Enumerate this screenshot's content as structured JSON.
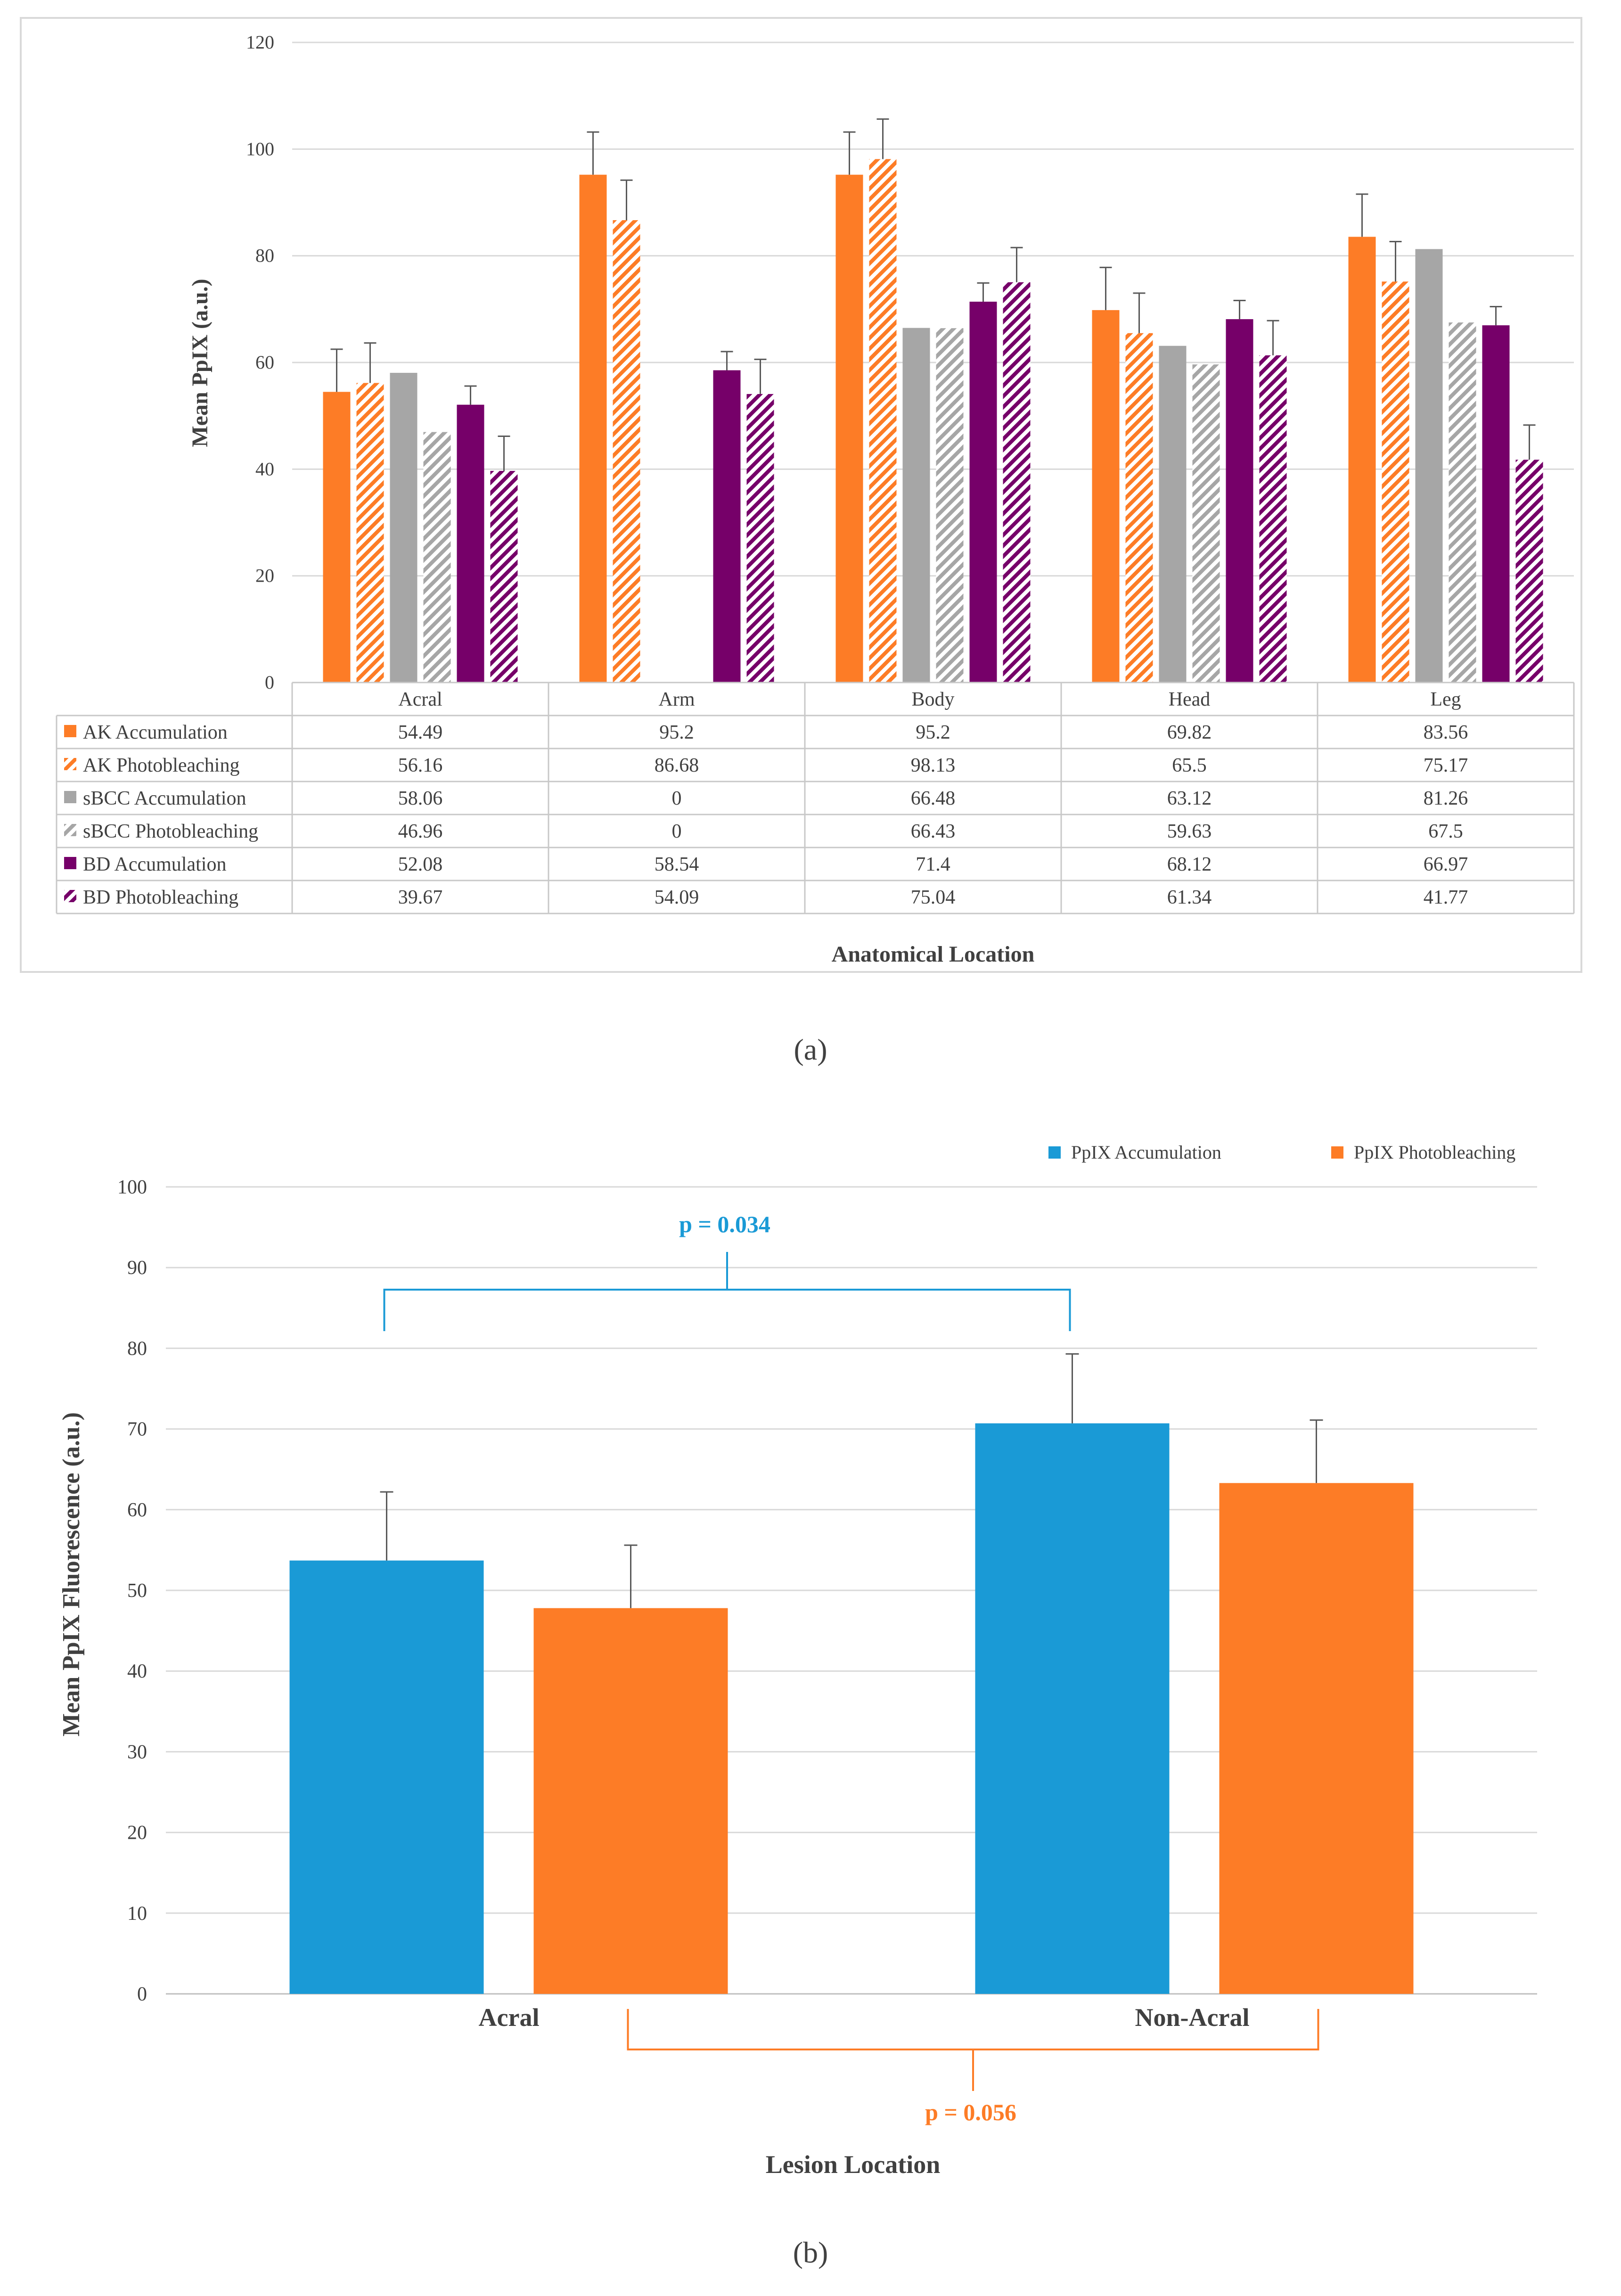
{
  "colors": {
    "ak": "#fd7c26",
    "sbcc": "#a6a6a6",
    "bd": "#760069",
    "accum_b": "#1a9ad6",
    "photo_b": "#fd7c26",
    "grid": "#d9d9d9",
    "error": "#595959"
  },
  "chart_data": [
    {
      "type": "bar",
      "panel_label": "(a)",
      "ylabel": "Mean PpIX (a.u.)",
      "xlabel": "Anatomical Location",
      "ylim": [
        0,
        120
      ],
      "yticks": [
        0,
        20,
        40,
        60,
        80,
        100,
        120
      ],
      "grid": true,
      "legend": "table",
      "categories": [
        "Acral",
        "Arm",
        "Body",
        "Head",
        "Leg"
      ],
      "series": [
        {
          "name": "AK Accumulation",
          "color_key": "ak",
          "hatched": false,
          "values": [
            54.49,
            95.2,
            95.2,
            69.82,
            83.56
          ],
          "errors": [
            8,
            8,
            8,
            8,
            8
          ]
        },
        {
          "name": "AK Photobleaching",
          "color_key": "ak",
          "hatched": true,
          "values": [
            56.16,
            86.68,
            98.13,
            65.5,
            75.17
          ],
          "errors": [
            7.5,
            7.5,
            7.5,
            7.5,
            7.5
          ]
        },
        {
          "name": "sBCC Accumulation",
          "color_key": "sbcc",
          "hatched": false,
          "values": [
            58.06,
            0,
            66.48,
            63.12,
            81.26
          ],
          "errors": [
            0,
            0,
            0,
            0,
            0
          ]
        },
        {
          "name": "sBCC Photobleaching",
          "color_key": "sbcc",
          "hatched": true,
          "values": [
            46.96,
            0,
            66.43,
            59.63,
            67.5
          ],
          "errors": [
            0,
            0,
            0,
            0,
            0
          ]
        },
        {
          "name": "BD Accumulation",
          "color_key": "bd",
          "hatched": false,
          "values": [
            52.08,
            58.54,
            71.4,
            68.12,
            66.97
          ],
          "errors": [
            3.5,
            3.5,
            3.5,
            3.5,
            3.5
          ]
        },
        {
          "name": "BD Photobleaching",
          "color_key": "bd",
          "hatched": true,
          "values": [
            39.67,
            54.09,
            75.04,
            61.34,
            41.77
          ],
          "errors": [
            6.5,
            6.5,
            6.5,
            6.5,
            6.5
          ]
        }
      ],
      "table_values": [
        [
          "54.49",
          "95.2",
          "95.2",
          "69.82",
          "83.56"
        ],
        [
          "56.16",
          "86.68",
          "98.13",
          "65.5",
          "75.17"
        ],
        [
          "58.06",
          "0",
          "66.48",
          "63.12",
          "81.26"
        ],
        [
          "46.96",
          "0",
          "66.43",
          "59.63",
          "67.5"
        ],
        [
          "52.08",
          "58.54",
          "71.4",
          "68.12",
          "66.97"
        ],
        [
          "39.67",
          "54.09",
          "75.04",
          "61.34",
          "41.77"
        ]
      ]
    },
    {
      "type": "bar",
      "panel_label": "(b)",
      "ylabel": "Mean PpIX Fluorescence (a.u.)",
      "xlabel": "Lesion Location",
      "ylim": [
        0,
        100
      ],
      "yticks": [
        0,
        10,
        20,
        30,
        40,
        50,
        60,
        70,
        80,
        90,
        100
      ],
      "grid": true,
      "legend": "top-right",
      "categories": [
        "Acral",
        "Non-Acral"
      ],
      "series": [
        {
          "name": "PpIX Accumulation",
          "color_key": "accum_b",
          "values": [
            53.7,
            70.7
          ],
          "errors": [
            8.5,
            8.6
          ]
        },
        {
          "name": "PpIX Photobleaching",
          "color_key": "photo_b",
          "values": [
            47.8,
            63.3
          ],
          "errors": [
            7.8,
            7.8
          ]
        }
      ],
      "annotations": [
        {
          "text": "p = 0.034",
          "color_key": "accum_b"
        },
        {
          "text": "p = 0.056",
          "color_key": "photo_b"
        }
      ]
    }
  ]
}
